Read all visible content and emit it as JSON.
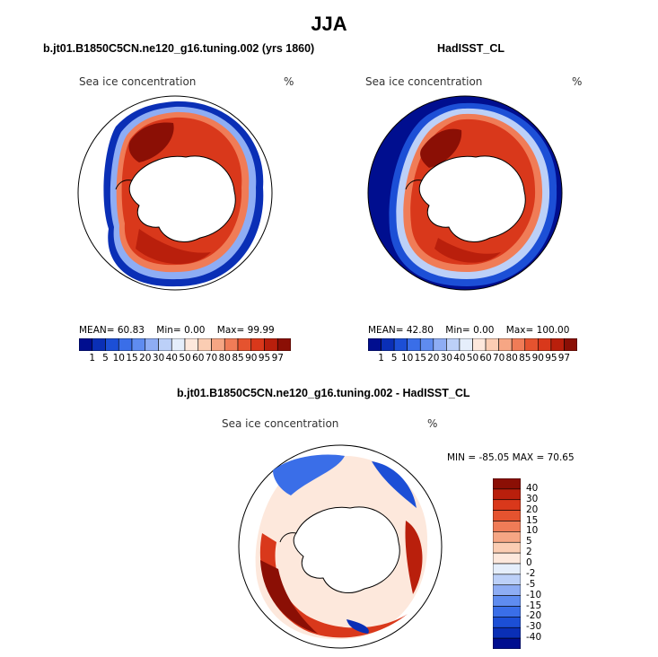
{
  "figure": {
    "title": "JJA",
    "colors": {
      "deep_blue": "#000e8f",
      "land": "#ffffff",
      "coast": "#000000",
      "ice_core": "#8b0f05",
      "ice_red": "#d9381b",
      "ice_edge_pale": "#fbd9c6"
    }
  },
  "panels": {
    "model": {
      "subtitle": "b.jt01.B1850C5CN.ne120_g16.tuning.002 (yrs 1860)",
      "var_label": "Sea ice concentration",
      "units": "%",
      "mean_label": "MEAN=",
      "mean": "60.83",
      "min_label": "Min=",
      "min": "0.00",
      "max_label": "Max=",
      "max": "99.99"
    },
    "obs": {
      "subtitle": "HadISST_CL",
      "var_label": "Sea ice concentration",
      "units": "%",
      "mean_label": "MEAN=",
      "mean": "42.80",
      "min_label": "Min=",
      "min": "0.00",
      "max_label": "Max=",
      "max": "100.00"
    },
    "diff": {
      "subtitle": "b.jt01.B1850C5CN.ne120_g16.tuning.002 - HadISST_CL",
      "var_label": "Sea ice concentration",
      "units": "%",
      "range_text": "MIN = -85.05 MAX =  70.65"
    }
  },
  "colorbars": {
    "concentration": {
      "labels": [
        "1",
        "5",
        "10",
        "15",
        "20",
        "30",
        "40",
        "50",
        "60",
        "70",
        "80",
        "85",
        "90",
        "95",
        "97"
      ],
      "colors": [
        "#000e8f",
        "#0a2fb6",
        "#1c4fd6",
        "#3a6ee8",
        "#5f8cf0",
        "#8eadf4",
        "#bcd0f8",
        "#e5eefb",
        "#fde8dc",
        "#fbcdb3",
        "#f6a684",
        "#f07c57",
        "#e5532f",
        "#d9381b",
        "#b91f0c",
        "#8b0f05"
      ]
    },
    "difference": {
      "labels": [
        "40",
        "30",
        "20",
        "15",
        "10",
        "5",
        "2",
        "0",
        "-2",
        "-5",
        "-10",
        "-15",
        "-20",
        "-30",
        "-40"
      ],
      "colors": [
        "#8b0f05",
        "#b91f0c",
        "#d9381b",
        "#e5532f",
        "#f07c57",
        "#f6a684",
        "#fbcdb3",
        "#fde8dc",
        "#e5eefb",
        "#bcd0f8",
        "#8eadf4",
        "#5f8cf0",
        "#3a6ee8",
        "#1c4fd6",
        "#0a2fb6",
        "#000e8f"
      ]
    }
  }
}
